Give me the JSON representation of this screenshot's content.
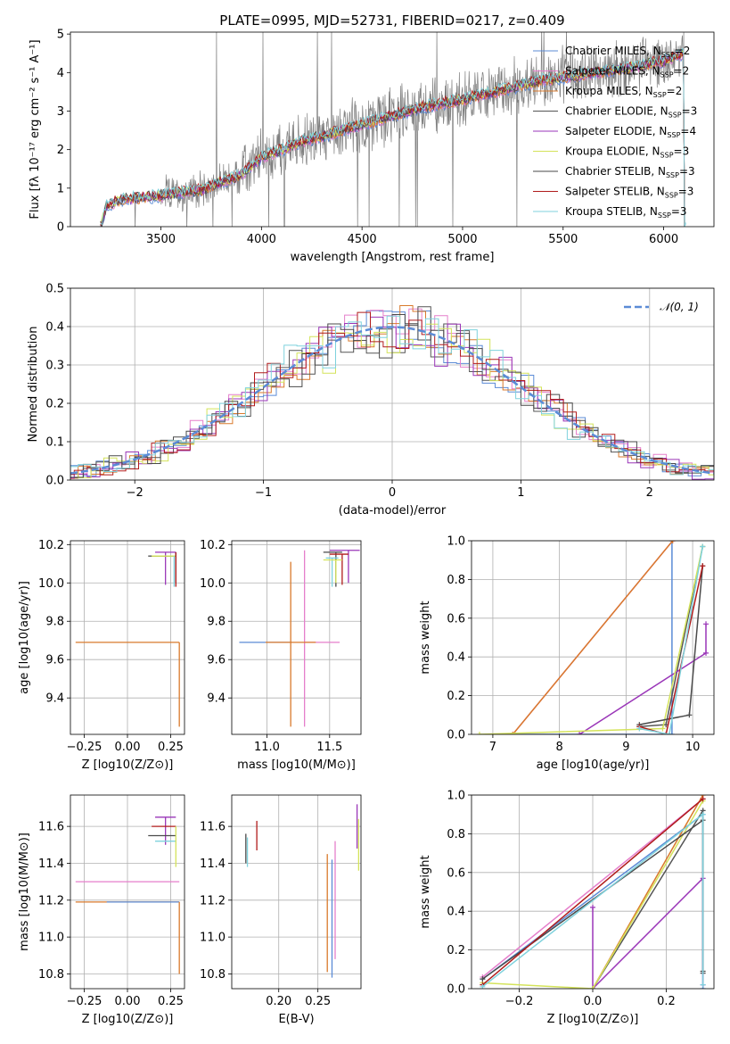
{
  "title": "PLATE=0995, MJD=52731, FIBERID=0217, z=0.409",
  "colors": {
    "Chabrier MILES": "#5b8bd6",
    "Salpeter MILES": "#e57fcb",
    "Kroupa MILES": "#d97a2c",
    "Chabrier ELODIE": "#555555",
    "Salpeter ELODIE": "#9a36b8",
    "Kroupa ELODIE": "#d4e35a",
    "Chabrier STELIB": "#4a4a4a",
    "Salpeter STELIB": "#b01b1b",
    "Kroupa STELIB": "#7fd2dd",
    "data": "#808080",
    "gauss": "#5b8bd6"
  },
  "chart_data": [
    {
      "type": "line",
      "xlabel": "wavelength [Angstrom, rest frame]",
      "ylabel": "Flux [fλ 10⁻¹⁷ erg cm⁻² s⁻¹ A⁻¹]",
      "xlim": [
        3050,
        6250
      ],
      "ylim": [
        0,
        5.05
      ],
      "xticks": [
        3500,
        4000,
        4500,
        5000,
        5500,
        6000
      ],
      "yticks": [
        0,
        1,
        2,
        3,
        4,
        5
      ],
      "grid": false,
      "legend_position": "right",
      "spectrum_envelope": [
        [
          3200,
          0
        ],
        [
          3230,
          0.55
        ],
        [
          3300,
          0.7
        ],
        [
          3400,
          0.75
        ],
        [
          3500,
          0.8
        ],
        [
          3700,
          0.95
        ],
        [
          3900,
          1.35
        ],
        [
          4000,
          1.8
        ],
        [
          4200,
          2.2
        ],
        [
          4400,
          2.5
        ],
        [
          4600,
          2.8
        ],
        [
          4800,
          3.1
        ],
        [
          5000,
          3.3
        ],
        [
          5200,
          3.55
        ],
        [
          5400,
          3.8
        ],
        [
          5600,
          3.95
        ],
        [
          5800,
          4.1
        ],
        [
          6000,
          4.3
        ],
        [
          6100,
          4.5
        ]
      ],
      "series": [
        {
          "name": "Chabrier MILES",
          "nssp": "2"
        },
        {
          "name": "Salpeter MILES",
          "nssp": "2"
        },
        {
          "name": "Kroupa MILES",
          "nssp": "2"
        },
        {
          "name": "Chabrier ELODIE",
          "nssp": "3"
        },
        {
          "name": "Salpeter ELODIE",
          "nssp": "4"
        },
        {
          "name": "Kroupa ELODIE",
          "nssp": "3"
        },
        {
          "name": "Chabrier STELIB",
          "nssp": "3"
        },
        {
          "name": "Salpeter STELIB",
          "nssp": "3"
        },
        {
          "name": "Kroupa STELIB",
          "nssp": "3"
        }
      ]
    },
    {
      "type": "line",
      "xlabel": "(data-model)/error",
      "ylabel": "Normed distribution",
      "xlim": [
        -2.5,
        2.5
      ],
      "ylim": [
        0,
        0.5
      ],
      "xticks": [
        -2,
        -1,
        0,
        1,
        2
      ],
      "yticks": [
        0.0,
        0.1,
        0.2,
        0.3,
        0.4,
        0.5
      ],
      "grid": true,
      "legend": "𝒩(0, 1)",
      "legend_position": "top-right",
      "histogram_bin_width": 0.1
    },
    {
      "type": "scatter",
      "xlabel": "Z [log10(Z/Z⊙)]",
      "ylabel": "age [log10(age/yr)]",
      "xlim": [
        -0.33,
        0.33
      ],
      "ylim": [
        9.21,
        10.22
      ],
      "xticks": [
        -0.25,
        0.0,
        0.25
      ],
      "yticks": [
        9.4,
        9.6,
        9.8,
        10.0,
        10.2
      ],
      "grid": true,
      "points": [
        {
          "series": "Kroupa MILES",
          "x": 0.0,
          "y": 9.69,
          "xerr": [
            0.3,
            0.3
          ],
          "yerr": [
            0.0,
            0.0
          ]
        },
        {
          "series": "Kroupa MILES",
          "x": 0.3,
          "y": 9.69,
          "xerr": [
            0.0,
            0.0
          ],
          "yerr": [
            0.44,
            0.0
          ]
        },
        {
          "series": "Salpeter ELODIE",
          "x": 0.22,
          "y": 10.16,
          "xerr": [
            0.06,
            0.06
          ],
          "yerr": [
            0.17,
            0.0
          ]
        },
        {
          "series": "Chabrier ELODIE",
          "x": 0.22,
          "y": 10.14,
          "xerr": [
            0.1,
            0.06
          ],
          "yerr": [
            0.0,
            0.0
          ]
        },
        {
          "series": "Kroupa ELODIE",
          "x": 0.22,
          "y": 10.14,
          "xerr": [
            0.08,
            0.06
          ],
          "yerr": [
            0.0,
            0.0
          ]
        },
        {
          "series": "Chabrier STELIB",
          "x": 0.28,
          "y": 10.1,
          "xerr": [
            0.0,
            0.0
          ],
          "yerr": [
            0.1,
            0.06
          ]
        },
        {
          "series": "Salpeter STELIB",
          "x": 0.28,
          "y": 10.1,
          "xerr": [
            0.0,
            0.0
          ],
          "yerr": [
            0.12,
            0.06
          ]
        },
        {
          "series": "Kroupa STELIB",
          "x": 0.27,
          "y": 10.08,
          "xerr": [
            0.0,
            0.0
          ],
          "yerr": [
            0.1,
            0.06
          ]
        }
      ]
    },
    {
      "type": "scatter",
      "xlabel": "mass [log10(M/M⊙)]",
      "ylabel": "",
      "xlim": [
        10.72,
        11.75
      ],
      "ylim": [
        9.21,
        10.22
      ],
      "xticks": [
        11.0,
        11.5
      ],
      "yticks": [
        9.4,
        9.6,
        9.8,
        10.0,
        10.2
      ],
      "grid": true,
      "points": [
        {
          "series": "Chabrier MILES",
          "x": 11.2,
          "y": 9.69,
          "xerr": [
            0.42,
            0.0
          ],
          "yerr": [
            0.0,
            0.0
          ]
        },
        {
          "series": "Salpeter MILES",
          "x": 11.3,
          "y": 9.69,
          "xerr": [
            0.0,
            0.28
          ],
          "yerr": [
            0.44,
            0.48
          ]
        },
        {
          "series": "Kroupa MILES",
          "x": 11.19,
          "y": 9.69,
          "xerr": [
            0.2,
            0.2
          ],
          "yerr": [
            0.44,
            0.42
          ]
        },
        {
          "series": "Salpeter ELODIE",
          "x": 11.65,
          "y": 10.17,
          "xerr": [
            0.15,
            0.09
          ],
          "yerr": [
            0.17,
            0.0
          ]
        },
        {
          "series": "Chabrier STELIB",
          "x": 11.55,
          "y": 10.16,
          "xerr": [
            0.1,
            0.05
          ],
          "yerr": [
            0.18,
            0.0
          ]
        },
        {
          "series": "Salpeter STELIB",
          "x": 11.6,
          "y": 10.15,
          "xerr": [
            0.1,
            0.05
          ],
          "yerr": [
            0.16,
            0.0
          ]
        },
        {
          "series": "Kroupa STELIB",
          "x": 11.52,
          "y": 10.13,
          "xerr": [
            0.05,
            0.05
          ],
          "yerr": [
            0.15,
            0.0
          ]
        },
        {
          "series": "Kroupa ELODIE",
          "x": 11.55,
          "y": 10.12,
          "xerr": [
            0.1,
            0.05
          ],
          "yerr": [
            0.12,
            0.0
          ]
        }
      ]
    },
    {
      "type": "line",
      "xlabel": "age [log10(age/yr)]",
      "ylabel": "mass weight",
      "xlim": [
        6.68,
        10.32
      ],
      "ylim": [
        0,
        1
      ],
      "xticks": [
        7,
        8,
        9,
        10
      ],
      "yticks": [
        0.0,
        0.2,
        0.4,
        0.6,
        0.8,
        1.0
      ],
      "grid": true,
      "series": [
        {
          "name": "Chabrier MILES",
          "x": [
            7.3,
            9.69,
            9.69
          ],
          "y": [
            0.0,
            0.0,
            1.0
          ]
        },
        {
          "name": "Salpeter MILES",
          "x": [
            7.3,
            9.7
          ],
          "y": [
            0.0,
            1.0
          ]
        },
        {
          "name": "Kroupa MILES",
          "x": [
            7.3,
            9.7
          ],
          "y": [
            0.0,
            1.0
          ]
        },
        {
          "name": "Chabrier ELODIE",
          "x": [
            9.2,
            9.6,
            10.15
          ],
          "y": [
            0.04,
            0.05,
            0.97
          ]
        },
        {
          "name": "Salpeter ELODIE",
          "x": [
            8.3,
            10.2,
            10.2
          ],
          "y": [
            0.0,
            0.42,
            0.57
          ]
        },
        {
          "name": "Kroupa ELODIE",
          "x": [
            6.8,
            9.55,
            10.15
          ],
          "y": [
            0.0,
            0.03,
            0.97
          ]
        },
        {
          "name": "Chabrier STELIB",
          "x": [
            9.2,
            9.95,
            10.15
          ],
          "y": [
            0.05,
            0.1,
            0.87
          ]
        },
        {
          "name": "Salpeter STELIB",
          "x": [
            9.2,
            9.6,
            10.15
          ],
          "y": [
            0.04,
            0.0,
            0.87
          ]
        },
        {
          "name": "Kroupa STELIB",
          "x": [
            9.2,
            9.65,
            10.15
          ],
          "y": [
            0.03,
            0.0,
            0.97
          ]
        }
      ]
    },
    {
      "type": "scatter",
      "xlabel": "Z [log10(Z/Z⊙)]",
      "ylabel": "mass [log10(M/M⊙)]",
      "xlim": [
        -0.33,
        0.33
      ],
      "ylim": [
        10.72,
        11.77
      ],
      "xticks": [
        -0.25,
        0.0,
        0.25
      ],
      "yticks": [
        10.8,
        11.0,
        11.2,
        11.4,
        11.6
      ],
      "grid": true,
      "points": [
        {
          "series": "Salpeter MILES",
          "x": 0.0,
          "y": 11.3,
          "xerr": [
            0.3,
            0.3
          ],
          "yerr": [
            0.0,
            0.0
          ]
        },
        {
          "series": "Kroupa MILES",
          "x": 0.0,
          "y": 11.19,
          "xerr": [
            0.3,
            0.3
          ],
          "yerr": [
            0.0,
            0.0
          ]
        },
        {
          "series": "Chabrier MILES",
          "x": 0.1,
          "y": 11.19,
          "xerr": [
            0.22,
            0.2
          ],
          "yerr": [
            0.0,
            0.0
          ]
        },
        {
          "series": "Kroupa MILES",
          "x": 0.3,
          "y": 11.19,
          "xerr": [
            0.0,
            0.0
          ],
          "yerr": [
            0.39,
            0.0
          ]
        },
        {
          "series": "Salpeter ELODIE",
          "x": 0.22,
          "y": 11.65,
          "xerr": [
            0.06,
            0.06
          ],
          "yerr": [
            0.15,
            0.0
          ]
        },
        {
          "series": "Chabrier STELIB",
          "x": 0.22,
          "y": 11.55,
          "xerr": [
            0.1,
            0.06
          ],
          "yerr": [
            0.0,
            0.0
          ]
        },
        {
          "series": "Salpeter STELIB",
          "x": 0.22,
          "y": 11.6,
          "xerr": [
            0.08,
            0.06
          ],
          "yerr": [
            0.0,
            0.0
          ]
        },
        {
          "series": "Kroupa STELIB",
          "x": 0.22,
          "y": 11.52,
          "xerr": [
            0.06,
            0.06
          ],
          "yerr": [
            0.0,
            0.0
          ]
        },
        {
          "series": "Kroupa ELODIE",
          "x": 0.28,
          "y": 11.5,
          "xerr": [
            0.0,
            0.0
          ],
          "yerr": [
            0.12,
            0.1
          ]
        }
      ]
    },
    {
      "type": "scatter",
      "xlabel": "E(B-V)",
      "ylabel": "",
      "xlim": [
        0.14,
        0.305
      ],
      "ylim": [
        10.72,
        11.77
      ],
      "xticks": [
        0.2,
        0.25
      ],
      "yticks": [
        10.8,
        11.0,
        11.2,
        11.4,
        11.6
      ],
      "grid": true,
      "points": [
        {
          "series": "Chabrier STELIB",
          "x": 0.158,
          "y": 11.48,
          "yerr": [
            0.08,
            0.08
          ]
        },
        {
          "series": "Kroupa STELIB",
          "x": 0.16,
          "y": 11.46,
          "yerr": [
            0.08,
            0.08
          ]
        },
        {
          "series": "Salpeter STELIB",
          "x": 0.172,
          "y": 11.55,
          "yerr": [
            0.08,
            0.08
          ]
        },
        {
          "series": "Kroupa MILES",
          "x": 0.262,
          "y": 11.13,
          "yerr": [
            0.32,
            0.32
          ]
        },
        {
          "series": "Chabrier MILES",
          "x": 0.268,
          "y": 11.1,
          "yerr": [
            0.32,
            0.32
          ]
        },
        {
          "series": "Salpeter MILES",
          "x": 0.272,
          "y": 11.2,
          "yerr": [
            0.32,
            0.32
          ]
        },
        {
          "series": "Salpeter ELODIE",
          "x": 0.3,
          "y": 11.6,
          "yerr": [
            0.12,
            0.12
          ]
        },
        {
          "series": "Kroupa ELODIE",
          "x": 0.302,
          "y": 11.5,
          "yerr": [
            0.14,
            0.14
          ]
        }
      ]
    },
    {
      "type": "line",
      "xlabel": "Z [log10(Z/Z⊙)]",
      "ylabel": "mass weight",
      "xlim": [
        -0.33,
        0.33
      ],
      "ylim": [
        0,
        1
      ],
      "xticks": [
        -0.2,
        0.0,
        0.2
      ],
      "yticks": [
        0.0,
        0.2,
        0.4,
        0.6,
        0.8,
        1.0
      ],
      "grid": true,
      "series": [
        {
          "name": "Chabrier MILES",
          "x": [
            -0.3,
            0.3,
            0.3
          ],
          "y": [
            0.05,
            0.9,
            0.0
          ]
        },
        {
          "name": "Salpeter MILES",
          "x": [
            -0.3,
            0.3
          ],
          "y": [
            0.06,
            0.98
          ]
        },
        {
          "name": "Kroupa MILES",
          "x": [
            0.0,
            0.3
          ],
          "y": [
            0.0,
            1.0
          ]
        },
        {
          "name": "Chabrier ELODIE",
          "x": [
            0.0,
            0.3,
            0.3
          ],
          "y": [
            0.0,
            0.92,
            0.08
          ]
        },
        {
          "name": "Salpeter ELODIE",
          "x": [
            0.0,
            0.0,
            0.3,
            0.3
          ],
          "y": [
            0.42,
            0.0,
            0.57,
            0.02
          ]
        },
        {
          "name": "Kroupa ELODIE",
          "x": [
            -0.3,
            0.0,
            0.3
          ],
          "y": [
            0.03,
            0.0,
            0.97
          ]
        },
        {
          "name": "Chabrier STELIB",
          "x": [
            -0.3,
            0.3,
            0.3
          ],
          "y": [
            0.05,
            0.87,
            0.09
          ]
        },
        {
          "name": "Salpeter STELIB",
          "x": [
            -0.3,
            0.3
          ],
          "y": [
            0.02,
            0.98
          ]
        },
        {
          "name": "Kroupa STELIB",
          "x": [
            -0.3,
            0.3,
            0.3
          ],
          "y": [
            0.01,
            0.9,
            0.02
          ]
        }
      ]
    }
  ]
}
